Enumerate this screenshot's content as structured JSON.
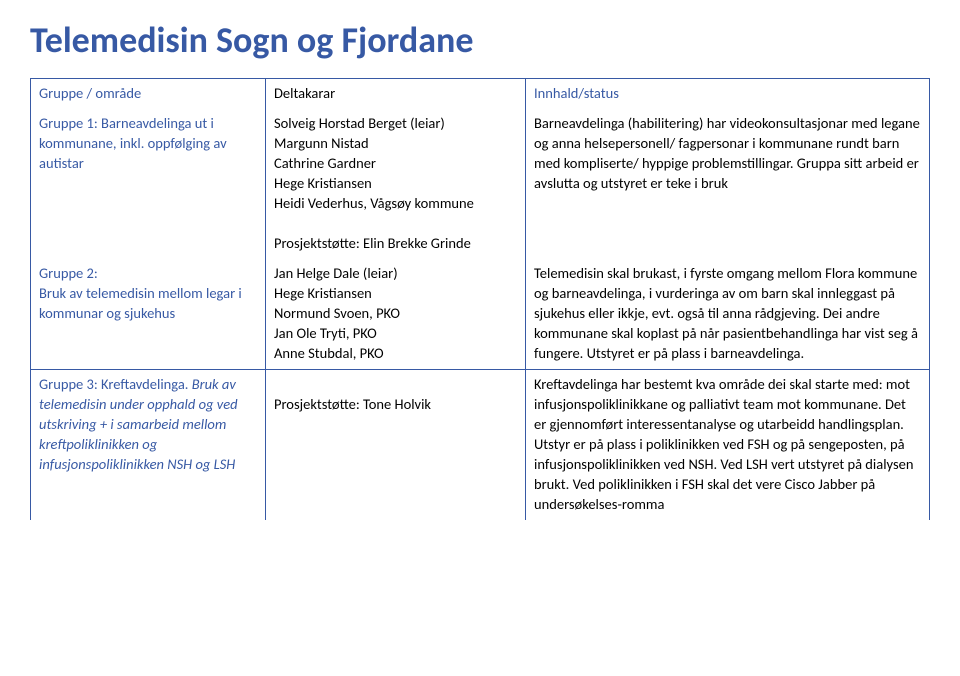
{
  "title": "Telemedisin Sogn og Fjordane",
  "headers": {
    "col1": "Gruppe / område",
    "col2": "Deltakarar",
    "col3": "Innhald/status"
  },
  "rows": [
    {
      "col1": "Gruppe 1: Barneavdelinga ut i kommunane, inkl. oppfølging av autistar",
      "col2_lines": [
        "Solveig Horstad Berget (leiar)",
        "Margunn Nistad",
        "Cathrine Gardner",
        "Hege Kristiansen",
        "Heidi Vederhus, Vågsøy kommune",
        "",
        "Prosjektstøtte: Elin Brekke Grinde"
      ],
      "col3": "Barneavdelinga (habilitering) har videokonsultasjonar med legane og anna helsepersonell/ fagpersonar i kommunane rundt barn med kompliserte/ hyppige problemstillingar. Gruppa sitt arbeid er avslutta og utstyret er teke i bruk"
    },
    {
      "col1": "Gruppe 2:\nBruk av telemedisin mellom legar i kommunar og sjukehus",
      "col2_lines": [
        "Jan Helge Dale (leiar)",
        "Hege Kristiansen",
        "Normund Svoen, PKO",
        "Jan Ole Tryti, PKO",
        "Anne Stubdal, PKO"
      ],
      "col3": "Telemedisin skal brukast, i fyrste omgang mellom Flora kommune og barneavdelinga, i vurderinga av om barn skal innleggast på sjukehus eller ikkje, evt. også til anna rådgjeving. Dei andre kommunane skal koplast på når pasientbehandlinga har vist seg å fungere. Utstyret er på plass i barneavdelinga."
    },
    {
      "col1_plain": "Gruppe 3: Kreftavdelinga.",
      "col1_italic": "Bruk av telemedisin under opphald og ved utskriving + i samarbeid mellom kreftpoliklinikken og infusjonspoliklinikken NSH og LSH",
      "col2_lines": [
        "",
        "Prosjektstøtte: Tone Holvik"
      ],
      "col3": "Kreftavdelinga har bestemt kva område dei skal starte med: mot infusjonspoliklinikkane og palliativt team mot kommunane. Det er gjennomført interessentanalyse og utarbeidd handlingsplan. Utstyr er på plass i poliklinikken ved FSH og på sengeposten, på infusjonspoliklinikken ved NSH. Ved LSH vert utstyret på dialysen brukt. Ved poliklinikken i FSH skal det vere Cisco Jabber på undersøkelses-romma"
    }
  ]
}
